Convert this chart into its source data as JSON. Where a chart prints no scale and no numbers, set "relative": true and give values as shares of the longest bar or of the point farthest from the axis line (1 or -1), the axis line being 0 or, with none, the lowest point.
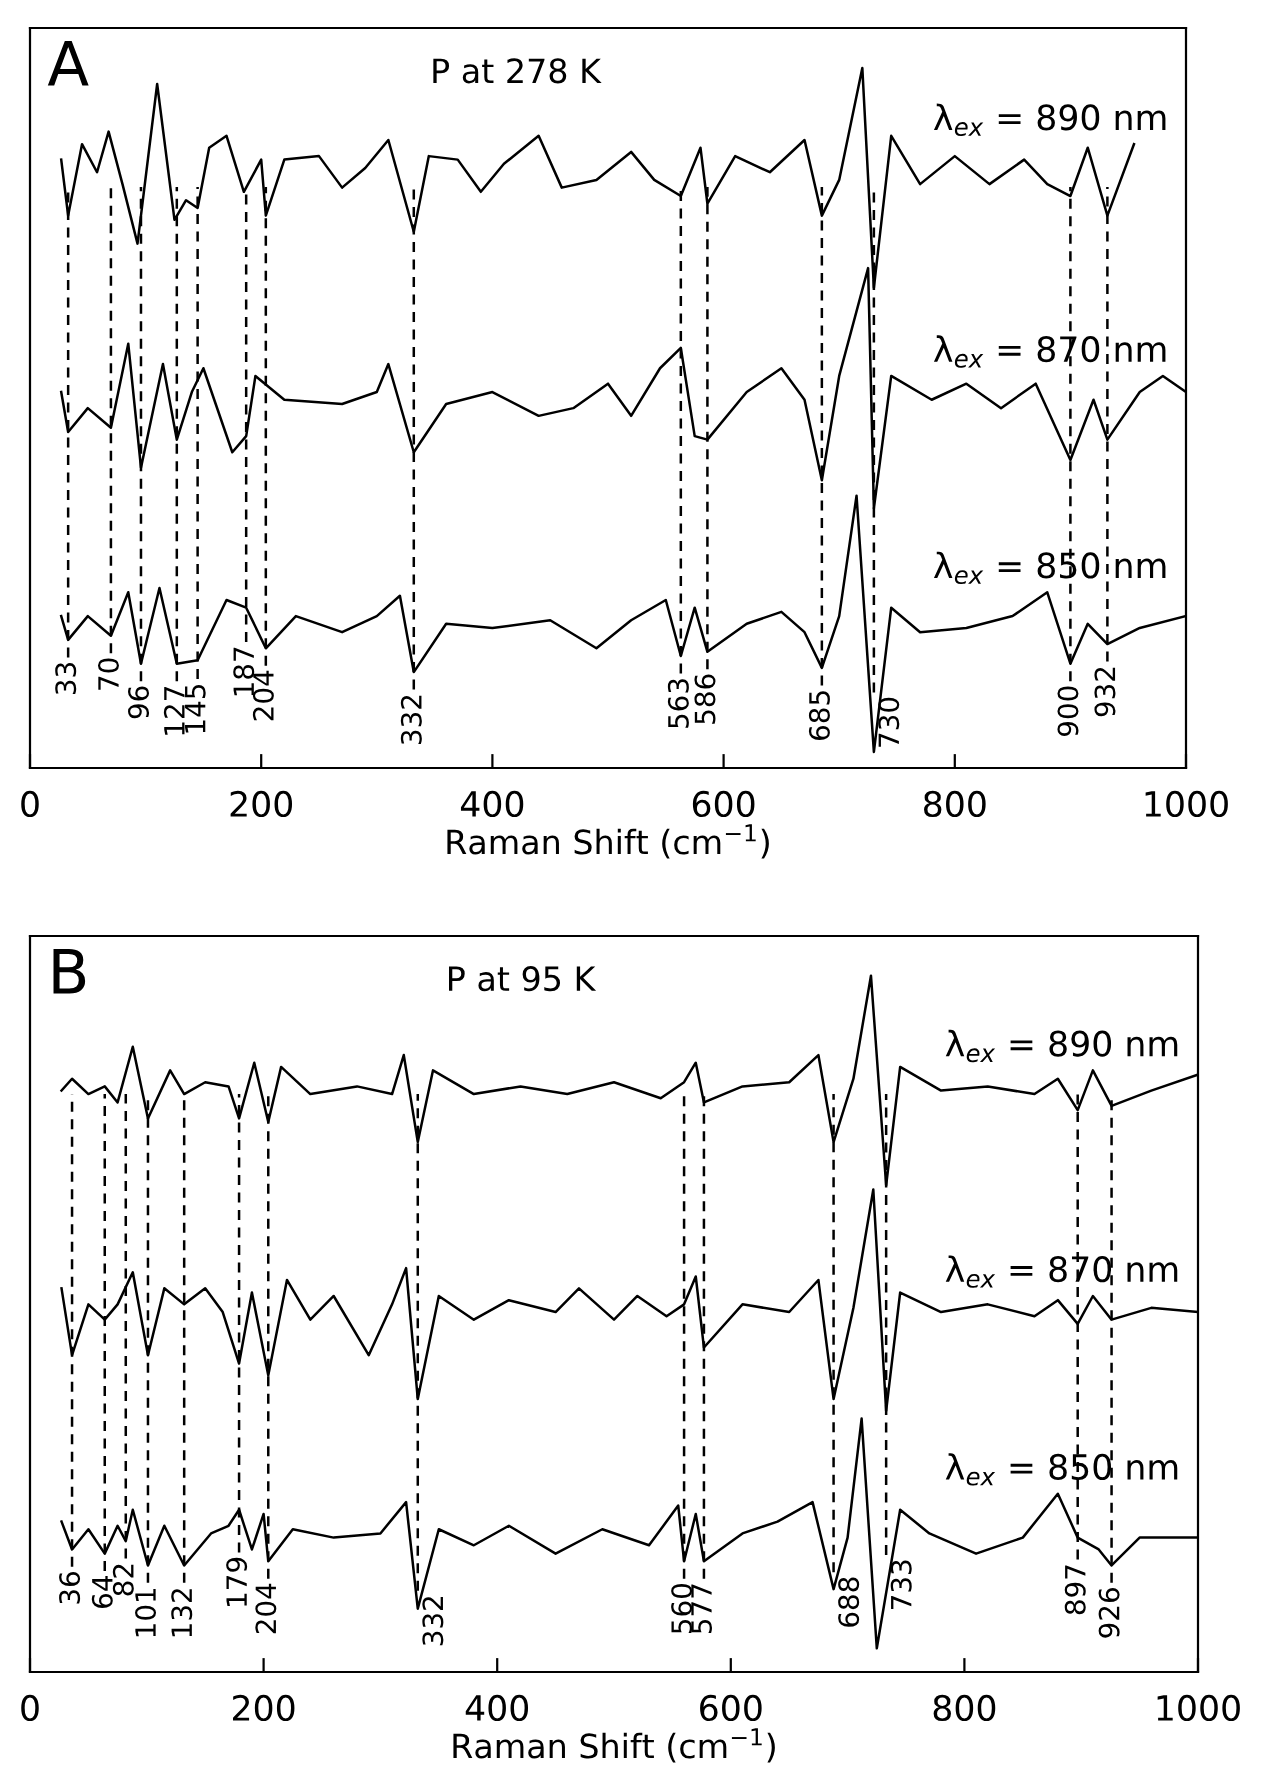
{
  "chart_data": [
    {
      "type": "line",
      "relative": true,
      "xlabel": "Raman Shift (cm$^{−1}$)",
      "xlim": [
        0,
        1000
      ],
      "xticks": [
        0,
        200,
        400,
        600,
        800,
        1000
      ],
      "tick_labels": "x",
      "grid": false,
      "legend": false,
      "marker": "none",
      "line_style": "solid",
      "annotations": [
        "A",
        "P at 278 K"
      ],
      "series": [
        {
          "name": "λ$_{ex}$ = 890 nm",
          "color": "#000000",
          "x": [
            27,
            33,
            45,
            58,
            68,
            80,
            93,
            110,
            125,
            135,
            145,
            155,
            170,
            185,
            200,
            204,
            220,
            250,
            270,
            290,
            310,
            332,
            345,
            370,
            390,
            410,
            440,
            460,
            490,
            520,
            540,
            563,
            580,
            586,
            610,
            640,
            670,
            685,
            700,
            720,
            730,
            745,
            770,
            800,
            830,
            860,
            880,
            900,
            915,
            932,
            955
          ],
          "values": [
            0.869,
            0.789,
            0.891,
            0.851,
            0.909,
            0.834,
            0.749,
            0.977,
            0.783,
            0.811,
            0.8,
            0.886,
            0.903,
            0.823,
            0.869,
            0.789,
            0.869,
            0.874,
            0.829,
            0.857,
            0.897,
            0.766,
            0.874,
            0.869,
            0.823,
            0.863,
            0.903,
            0.829,
            0.84,
            0.88,
            0.84,
            0.817,
            0.886,
            0.806,
            0.874,
            0.851,
            0.897,
            0.789,
            0.84,
            1.0,
            0.686,
            0.903,
            0.834,
            0.874,
            0.834,
            0.869,
            0.834,
            0.817,
            0.886,
            0.789,
            0.891
          ]
        },
        {
          "name": "λ$_{ex}$ = 870 nm",
          "color": "#000000",
          "x": [
            27,
            33,
            50,
            70,
            85,
            96,
            115,
            127,
            140,
            150,
            175,
            187,
            195,
            220,
            270,
            300,
            310,
            332,
            360,
            400,
            440,
            470,
            500,
            520,
            545,
            563,
            575,
            586,
            620,
            650,
            670,
            685,
            700,
            725,
            730,
            745,
            780,
            810,
            840,
            870,
            900,
            920,
            932,
            960,
            980,
            1000
          ],
          "values": [
            0.537,
            0.48,
            0.514,
            0.486,
            0.606,
            0.429,
            0.577,
            0.469,
            0.537,
            0.571,
            0.451,
            0.474,
            0.56,
            0.526,
            0.52,
            0.537,
            0.577,
            0.451,
            0.52,
            0.537,
            0.503,
            0.514,
            0.549,
            0.503,
            0.571,
            0.6,
            0.474,
            0.469,
            0.537,
            0.571,
            0.526,
            0.411,
            0.56,
            0.714,
            0.371,
            0.56,
            0.526,
            0.549,
            0.514,
            0.549,
            0.44,
            0.526,
            0.469,
            0.537,
            0.56,
            0.537
          ]
        },
        {
          "name": "λ$_{ex}$ = 850 nm",
          "color": "#000000",
          "x": [
            27,
            33,
            50,
            70,
            85,
            96,
            112,
            127,
            145,
            170,
            187,
            204,
            230,
            270,
            300,
            320,
            332,
            360,
            400,
            450,
            490,
            520,
            550,
            563,
            575,
            586,
            620,
            650,
            670,
            685,
            700,
            715,
            730,
            745,
            770,
            810,
            850,
            880,
            900,
            915,
            932,
            960,
            1000
          ],
          "values": [
            0.217,
            0.183,
            0.217,
            0.189,
            0.251,
            0.149,
            0.257,
            0.149,
            0.154,
            0.24,
            0.229,
            0.171,
            0.217,
            0.194,
            0.217,
            0.246,
            0.137,
            0.206,
            0.2,
            0.211,
            0.171,
            0.211,
            0.24,
            0.16,
            0.229,
            0.166,
            0.206,
            0.223,
            0.194,
            0.143,
            0.217,
            0.389,
            0.023,
            0.229,
            0.194,
            0.2,
            0.217,
            0.251,
            0.149,
            0.206,
            0.177,
            0.2,
            0.217
          ]
        }
      ],
      "ref_lines": [
        {
          "axis": "x",
          "value": 33,
          "label": "33",
          "line_style": "dashed",
          "color": "#000000"
        },
        {
          "axis": "x",
          "value": 70,
          "label": "70",
          "line_style": "dashed",
          "color": "#000000"
        },
        {
          "axis": "x",
          "value": 96,
          "label": "96",
          "line_style": "dashed",
          "color": "#000000"
        },
        {
          "axis": "x",
          "value": 127,
          "label": "127",
          "line_style": "dashed",
          "color": "#000000"
        },
        {
          "axis": "x",
          "value": 145,
          "label": "145",
          "line_style": "dashed",
          "color": "#000000"
        },
        {
          "axis": "x",
          "value": 187,
          "label": "187",
          "line_style": "dashed",
          "color": "#000000"
        },
        {
          "axis": "x",
          "value": 204,
          "label": "204",
          "line_style": "dashed",
          "color": "#000000"
        },
        {
          "axis": "x",
          "value": 332,
          "label": "332",
          "line_style": "dashed",
          "color": "#000000"
        },
        {
          "axis": "x",
          "value": 563,
          "label": "563",
          "line_style": "dashed",
          "color": "#000000"
        },
        {
          "axis": "x",
          "value": 586,
          "label": "586",
          "line_style": "dashed",
          "color": "#000000"
        },
        {
          "axis": "x",
          "value": 685,
          "label": "685",
          "line_style": "dashed",
          "color": "#000000"
        },
        {
          "axis": "x",
          "value": 730,
          "label": "730",
          "line_style": "dashed",
          "color": "#000000"
        },
        {
          "axis": "x",
          "value": 900,
          "label": "900",
          "line_style": "dashed",
          "color": "#000000"
        },
        {
          "axis": "x",
          "value": 932,
          "label": "932",
          "line_style": "dashed",
          "color": "#000000"
        }
      ]
    },
    {
      "type": "line",
      "relative": true,
      "xlabel": "Raman Shift (cm$^{−1}$)",
      "xlim": [
        0,
        1000
      ],
      "xticks": [
        0,
        200,
        400,
        600,
        800,
        1000
      ],
      "tick_labels": "x",
      "grid": false,
      "legend": false,
      "marker": "none",
      "line_style": "solid",
      "annotations": [
        "B",
        "P at 95 K"
      ],
      "series": [
        {
          "name": "λ$_{ex}$ = 890 nm",
          "color": "#000000",
          "x": [
            27,
            36,
            50,
            64,
            75,
            88,
            101,
            120,
            132,
            150,
            170,
            179,
            192,
            204,
            215,
            240,
            280,
            310,
            320,
            332,
            345,
            380,
            420,
            460,
            500,
            540,
            560,
            570,
            577,
            610,
            650,
            675,
            688,
            705,
            720,
            733,
            745,
            780,
            820,
            860,
            880,
            897,
            910,
            926,
            960,
            1000
          ],
          "values": [
            0.835,
            0.852,
            0.83,
            0.841,
            0.818,
            0.898,
            0.795,
            0.864,
            0.83,
            0.847,
            0.841,
            0.795,
            0.875,
            0.79,
            0.869,
            0.83,
            0.841,
            0.83,
            0.886,
            0.761,
            0.864,
            0.83,
            0.841,
            0.83,
            0.847,
            0.824,
            0.847,
            0.875,
            0.818,
            0.841,
            0.847,
            0.886,
            0.761,
            0.852,
            1.0,
            0.699,
            0.869,
            0.835,
            0.841,
            0.83,
            0.852,
            0.807,
            0.864,
            0.813,
            0.835,
            0.858
          ]
        },
        {
          "name": "λ$_{ex}$ = 870 nm",
          "color": "#000000",
          "x": [
            27,
            36,
            50,
            64,
            75,
            88,
            101,
            115,
            132,
            150,
            165,
            179,
            190,
            204,
            220,
            240,
            260,
            290,
            310,
            322,
            332,
            350,
            380,
            410,
            450,
            470,
            500,
            520,
            545,
            560,
            570,
            577,
            610,
            650,
            675,
            688,
            705,
            722,
            733,
            745,
            780,
            820,
            860,
            880,
            897,
            910,
            926,
            960,
            1000
          ],
          "values": [
            0.551,
            0.455,
            0.528,
            0.506,
            0.528,
            0.574,
            0.455,
            0.551,
            0.528,
            0.551,
            0.517,
            0.443,
            0.545,
            0.426,
            0.563,
            0.506,
            0.54,
            0.455,
            0.528,
            0.58,
            0.392,
            0.54,
            0.506,
            0.534,
            0.517,
            0.551,
            0.506,
            0.54,
            0.511,
            0.528,
            0.568,
            0.466,
            0.528,
            0.517,
            0.563,
            0.392,
            0.523,
            0.693,
            0.375,
            0.545,
            0.517,
            0.528,
            0.511,
            0.534,
            0.5,
            0.54,
            0.506,
            0.523,
            0.517
          ]
        },
        {
          "name": "λ$_{ex}$ = 850 nm",
          "color": "#000000",
          "x": [
            27,
            36,
            50,
            64,
            75,
            82,
            88,
            101,
            115,
            132,
            155,
            170,
            179,
            190,
            200,
            204,
            225,
            260,
            300,
            322,
            332,
            350,
            380,
            410,
            450,
            490,
            530,
            555,
            560,
            570,
            577,
            610,
            640,
            670,
            688,
            700,
            712,
            725,
            745,
            770,
            810,
            850,
            880,
            897,
            915,
            926,
            950,
            1000
          ],
          "values": [
            0.216,
            0.176,
            0.205,
            0.17,
            0.21,
            0.188,
            0.233,
            0.153,
            0.21,
            0.153,
            0.199,
            0.21,
            0.233,
            0.176,
            0.227,
            0.159,
            0.205,
            0.193,
            0.199,
            0.244,
            0.091,
            0.205,
            0.182,
            0.21,
            0.17,
            0.205,
            0.182,
            0.239,
            0.159,
            0.227,
            0.159,
            0.199,
            0.216,
            0.244,
            0.119,
            0.193,
            0.364,
            0.034,
            0.233,
            0.199,
            0.17,
            0.193,
            0.256,
            0.193,
            0.176,
            0.153,
            0.193,
            0.193
          ]
        }
      ],
      "ref_lines": [
        {
          "axis": "x",
          "value": 36,
          "label": "36",
          "line_style": "dashed",
          "color": "#000000"
        },
        {
          "axis": "x",
          "value": 64,
          "label": "64",
          "line_style": "dashed",
          "color": "#000000"
        },
        {
          "axis": "x",
          "value": 82,
          "label": "82",
          "line_style": "dashed",
          "color": "#000000"
        },
        {
          "axis": "x",
          "value": 101,
          "label": "101",
          "line_style": "dashed",
          "color": "#000000"
        },
        {
          "axis": "x",
          "value": 132,
          "label": "132",
          "line_style": "dashed",
          "color": "#000000"
        },
        {
          "axis": "x",
          "value": 179,
          "label": "179",
          "line_style": "dashed",
          "color": "#000000"
        },
        {
          "axis": "x",
          "value": 204,
          "label": "204",
          "line_style": "dashed",
          "color": "#000000"
        },
        {
          "axis": "x",
          "value": 332,
          "label": "332",
          "line_style": "dashed",
          "color": "#000000"
        },
        {
          "axis": "x",
          "value": 560,
          "label": "560",
          "line_style": "dashed",
          "color": "#000000"
        },
        {
          "axis": "x",
          "value": 577,
          "label": "577",
          "line_style": "dashed",
          "color": "#000000"
        },
        {
          "axis": "x",
          "value": 688,
          "label": "688",
          "line_style": "dashed",
          "color": "#000000"
        },
        {
          "axis": "x",
          "value": 733,
          "label": "733",
          "line_style": "dashed",
          "color": "#000000"
        },
        {
          "axis": "x",
          "value": 897,
          "label": "897",
          "line_style": "dashed",
          "color": "#000000"
        },
        {
          "axis": "x",
          "value": 926,
          "label": "926",
          "line_style": "dashed",
          "color": "#000000"
        }
      ]
    }
  ]
}
